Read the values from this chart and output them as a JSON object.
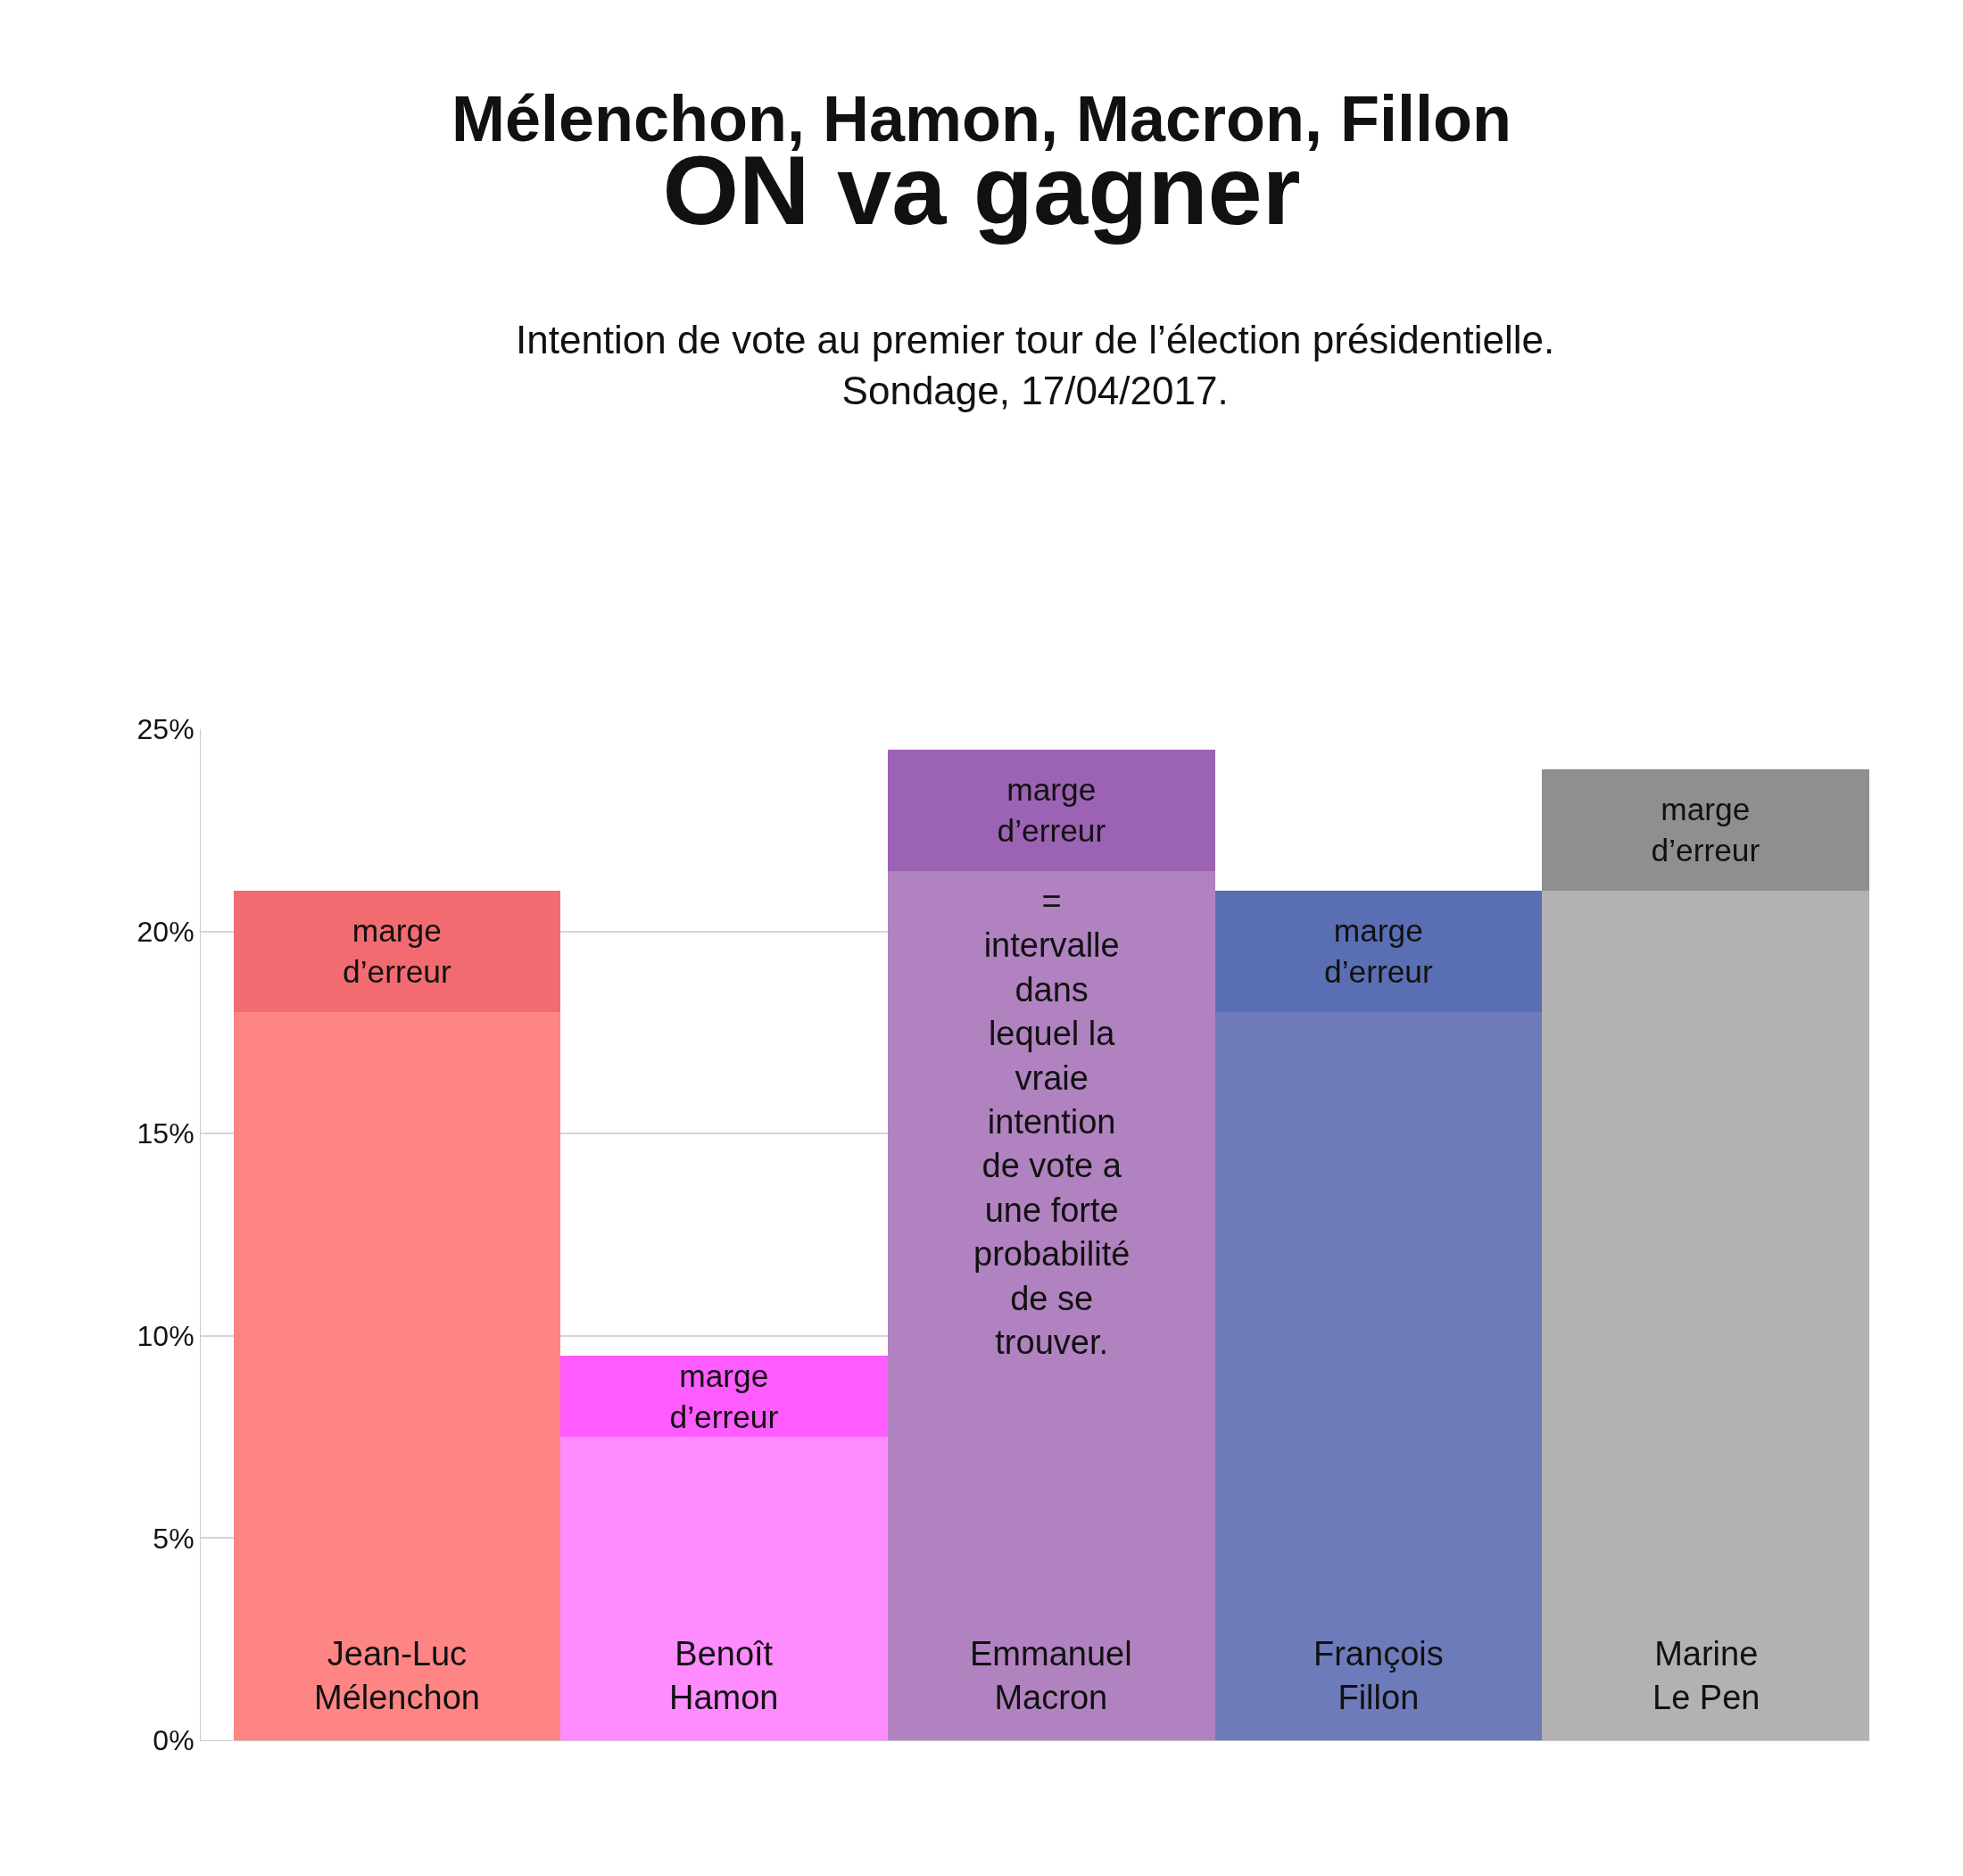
{
  "chart_data": {
    "type": "bar",
    "title": "Mélenchon, Hamon, Macron, Fillon\nON va gagner",
    "subtitle": "Intention de vote au premier tour de l’élection présidentielle.\nSondage, 17/04/2017.",
    "categories": [
      "Jean-Luc\nMélenchon",
      "Benoît\nHamon",
      "Emmanuel\nMacron",
      "François\nFillon",
      "Marine\nLe Pen"
    ],
    "stacked": true,
    "series": [
      {
        "colors": [
          "#ff8585",
          "#ff8cff",
          "#b182c0",
          "#6e7bba",
          "#b2b2b2"
        ],
        "values": [
          18,
          7.5,
          21.5,
          18,
          21
        ]
      },
      {
        "colors": [
          "#f26b70",
          "#ff5cff",
          "#9c62b3",
          "#5a6fb3",
          "#8f8f8f"
        ],
        "values": [
          3,
          2,
          3,
          3,
          3
        ],
        "value_labels": [
          "marge\nd’erreur",
          "marge\nd’erreur",
          "marge\nd’erreur",
          "marge\nd’erreur",
          "marge\nd’erreur"
        ]
      }
    ],
    "annotations": [
      "=\nintervalle\ndans\nlequel la\nvraie\nintention\nde vote a\nune forte\nprobabilité\nde se\ntrouver."
    ],
    "ylim": [
      0,
      25
    ],
    "yticks": [
      {
        "value": 0,
        "label": "0%"
      },
      {
        "value": 5,
        "label": "5%"
      },
      {
        "value": 10,
        "label": "10%"
      },
      {
        "value": 15,
        "label": "15%"
      },
      {
        "value": 20,
        "label": "20%"
      },
      {
        "value": 25,
        "label": "25%"
      }
    ],
    "grid": "y"
  }
}
